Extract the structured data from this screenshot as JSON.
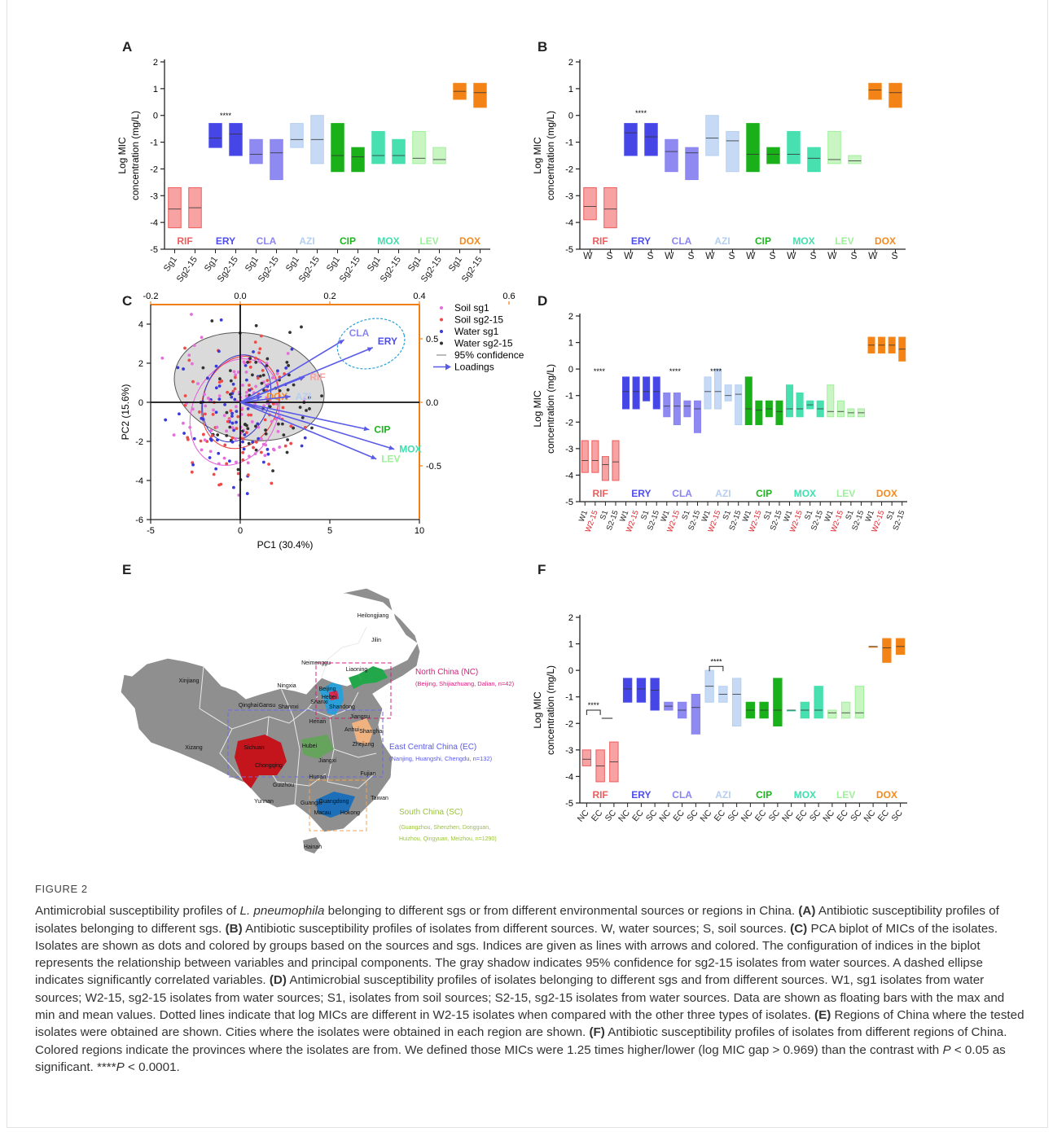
{
  "drug_labels": [
    "RIF",
    "ERY",
    "CLA",
    "AZI",
    "CIP",
    "MOX",
    "LEV",
    "DOX"
  ],
  "drug_colors": [
    "#ef5b5b",
    "#4d4ded",
    "#8a85f0",
    "#b6cff0",
    "#1eb31e",
    "#3fe0ad",
    "#9ef09a",
    "#f58a1f"
  ],
  "drug_fills": [
    "#f7a3a3",
    "#4646e6",
    "#8e8af2",
    "#c6daf6",
    "#19b019",
    "#47e0ae",
    "#c8f5c2",
    "#f38316"
  ],
  "charts": {
    "A": {
      "letter": "A",
      "ylabel1": "Log MIC",
      "ylabel2": "concentration (mg/L)",
      "yticks": [
        "-5",
        "-4",
        "-3",
        "-2",
        "-1",
        "0",
        "1",
        "2"
      ],
      "ymin": -5,
      "ymax": 2,
      "xlabels": [
        "Sg1",
        "Sg2-15",
        "Sg1",
        "Sg2-15",
        "Sg1",
        "Sg2-15",
        "Sg1",
        "Sg2-15",
        "Sg1",
        "Sg2-15",
        "Sg1",
        "Sg2-15",
        "Sg1",
        "Sg2-15",
        "Sg1",
        "Sg2-15"
      ],
      "sig": "****",
      "bars": [
        [
          -4.2,
          -2.7,
          -3.5
        ],
        [
          -4.2,
          -2.7,
          -3.45
        ],
        [
          -1.2,
          -0.3,
          -0.85
        ],
        [
          -1.5,
          -0.3,
          -0.7
        ],
        [
          -1.8,
          -0.9,
          -1.45
        ],
        [
          -2.4,
          -0.9,
          -1.4
        ],
        [
          -1.2,
          -0.3,
          -0.9
        ],
        [
          -1.8,
          0,
          -0.9
        ],
        [
          -2.1,
          -0.3,
          -1.5
        ],
        [
          -2.1,
          -1.2,
          -1.55
        ],
        [
          -1.8,
          -0.6,
          -1.5
        ],
        [
          -1.8,
          -0.9,
          -1.5
        ],
        [
          -1.8,
          -0.6,
          -1.6
        ],
        [
          -1.8,
          -1.2,
          -1.65
        ],
        [
          0.6,
          1.2,
          0.9
        ],
        [
          0.3,
          1.2,
          0.85
        ]
      ]
    },
    "B": {
      "letter": "B",
      "ylabel1": "Log MIC",
      "ylabel2": "concentration (mg/L)",
      "yticks": [
        "-5",
        "-4",
        "-3",
        "-2",
        "-1",
        "0",
        "1",
        "2"
      ],
      "ymin": -5,
      "ymax": 2,
      "xlabels": [
        "W",
        "S",
        "W",
        "S",
        "W",
        "S",
        "W",
        "S",
        "W",
        "S",
        "W",
        "S",
        "W",
        "S",
        "W",
        "S"
      ],
      "sig": "****",
      "bars": [
        [
          -3.9,
          -2.7,
          -3.4
        ],
        [
          -4.2,
          -2.7,
          -3.5
        ],
        [
          -1.5,
          -0.3,
          -0.65
        ],
        [
          -1.5,
          -0.3,
          -0.8
        ],
        [
          -2.1,
          -0.9,
          -1.35
        ],
        [
          -2.4,
          -1.2,
          -1.4
        ],
        [
          -1.5,
          0,
          -0.85
        ],
        [
          -2.1,
          -0.6,
          -0.95
        ],
        [
          -2.1,
          -0.3,
          -1.45
        ],
        [
          -1.8,
          -1.2,
          -1.45
        ],
        [
          -1.8,
          -0.6,
          -1.45
        ],
        [
          -2.1,
          -1.2,
          -1.6
        ],
        [
          -1.8,
          -0.6,
          -1.65
        ],
        [
          -1.8,
          -1.5,
          -1.7
        ],
        [
          0.6,
          1.2,
          0.95
        ],
        [
          0.3,
          1.2,
          0.85
        ]
      ]
    },
    "D": {
      "letter": "D",
      "ylabel1": "Log MIC",
      "ylabel2": "concentration (mg/L)",
      "yticks": [
        "-5",
        "-4",
        "-3",
        "-2",
        "-1",
        "0",
        "1",
        "2"
      ],
      "ymin": -5,
      "ymax": 2,
      "xlabels": [
        "W1",
        "W2-15",
        "S1",
        "S2-15",
        "W1",
        "W2-15",
        "S1",
        "S2-15",
        "W1",
        "W2-15",
        "S1",
        "S2-15",
        "W1",
        "W2-15",
        "S1",
        "S2-15",
        "W1",
        "W2-15",
        "S1",
        "S2-15",
        "W1",
        "W2-15",
        "S1",
        "S2-15",
        "W1",
        "W2-15",
        "S1",
        "S2-15",
        "W1",
        "W2-15",
        "S1",
        "S2-15"
      ],
      "sig": "****",
      "bars": [
        [
          -3.9,
          -2.7,
          -3.45
        ],
        [
          -3.9,
          -2.7,
          -3.45
        ],
        [
          -4.2,
          -3.3,
          -3.6
        ],
        [
          -4.2,
          -2.7,
          -3.5
        ],
        [
          -1.5,
          -0.3,
          -0.85
        ],
        [
          -1.5,
          -0.3,
          -0.85
        ],
        [
          -1.2,
          -0.3,
          -0.85
        ],
        [
          -1.5,
          -0.3,
          -0.85
        ],
        [
          -1.8,
          -0.9,
          -1.4
        ],
        [
          -2.1,
          -0.9,
          -1.4
        ],
        [
          -1.8,
          -1.2,
          -1.4
        ],
        [
          -2.4,
          -1.2,
          -1.5
        ],
        [
          -1.5,
          -0.3,
          -0.85
        ],
        [
          -1.5,
          0,
          -0.85
        ],
        [
          -1.2,
          -0.6,
          -1.0
        ],
        [
          -2.1,
          -0.6,
          -0.95
        ],
        [
          -2.1,
          -0.3,
          -1.5
        ],
        [
          -2.1,
          -1.2,
          -1.55
        ],
        [
          -1.8,
          -1.2,
          -1.5
        ],
        [
          -2.1,
          -1.2,
          -1.6
        ],
        [
          -1.8,
          -0.6,
          -1.5
        ],
        [
          -1.8,
          -0.9,
          -1.5
        ],
        [
          -1.5,
          -1.2,
          -1.35
        ],
        [
          -1.8,
          -1.2,
          -1.5
        ],
        [
          -1.8,
          -0.6,
          -1.6
        ],
        [
          -1.8,
          -1.2,
          -1.6
        ],
        [
          -1.8,
          -1.5,
          -1.65
        ],
        [
          -1.8,
          -1.5,
          -1.65
        ],
        [
          0.6,
          1.2,
          0.9
        ],
        [
          0.6,
          1.2,
          0.9
        ],
        [
          0.6,
          1.2,
          0.9
        ],
        [
          0.3,
          1.2,
          0.75
        ]
      ]
    },
    "F": {
      "letter": "F",
      "ylabel1": "Log MIC",
      "ylabel2": "concentration (mg/L)",
      "yticks": [
        "-5",
        "-4",
        "-3",
        "-2",
        "-1",
        "0",
        "1",
        "2"
      ],
      "ymin": -5,
      "ymax": 2,
      "xlabels": [
        "NC",
        "EC",
        "SC",
        "NC",
        "EC",
        "SC",
        "NC",
        "EC",
        "SC",
        "NC",
        "EC",
        "SC",
        "NC",
        "EC",
        "SC",
        "NC",
        "EC",
        "SC",
        "NC",
        "EC",
        "SC",
        "NC",
        "EC",
        "SC"
      ],
      "sig": "****",
      "bars": [
        [
          -3.6,
          -3.0,
          -3.35
        ],
        [
          -4.2,
          -3.0,
          -3.6
        ],
        [
          -4.2,
          -2.7,
          -3.45
        ],
        [
          -1.2,
          -0.3,
          -0.7
        ],
        [
          -1.2,
          -0.3,
          -0.7
        ],
        [
          -1.5,
          -0.3,
          -0.75
        ],
        [
          -1.5,
          -1.2,
          -1.35
        ],
        [
          -1.8,
          -1.2,
          -1.5
        ],
        [
          -2.4,
          -0.9,
          -1.4
        ],
        [
          -1.2,
          0,
          -0.6
        ],
        [
          -1.2,
          -0.6,
          -0.9
        ],
        [
          -2.1,
          -0.3,
          -0.9
        ],
        [
          -1.8,
          -1.2,
          -1.5
        ],
        [
          -1.8,
          -1.2,
          -1.5
        ],
        [
          -2.1,
          -0.3,
          -1.5
        ],
        [
          -1.5,
          -1.5,
          -1.5
        ],
        [
          -1.8,
          -1.2,
          -1.5
        ],
        [
          -1.8,
          -0.6,
          -1.5
        ],
        [
          -1.8,
          -1.5,
          -1.6
        ],
        [
          -1.8,
          -1.2,
          -1.6
        ],
        [
          -1.8,
          -0.6,
          -1.6
        ],
        [
          0.9,
          0.9,
          0.9
        ],
        [
          0.3,
          1.2,
          0.85
        ],
        [
          0.6,
          1.2,
          0.9
        ]
      ]
    }
  },
  "pca": {
    "letter": "C",
    "xlabel": "PC1 (30.4%)",
    "ylabel": "PC2 (15.6%)",
    "xticks": [
      "-5",
      "0",
      "5",
      "10"
    ],
    "yticks": [
      "-6",
      "-4",
      "-2",
      "0",
      "2",
      "4"
    ],
    "top_ticks": [
      "-0.2",
      "0.0",
      "0.2",
      "0.4",
      "0.6"
    ],
    "right_ticks": [
      "0.5",
      "0.0",
      "-0.5"
    ],
    "legend": [
      "Soil sg1",
      "Soil sg2-15",
      "Water sg1",
      "Water sg2-15",
      "95% confidence",
      "Loadings"
    ],
    "loadings": [
      {
        "name": "CLA",
        "x": 5.8,
        "y": 3.2
      },
      {
        "name": "ERY",
        "x": 7.4,
        "y": 2.8
      },
      {
        "name": "RIF",
        "x": 3.6,
        "y": 1.3
      },
      {
        "name": "DOX",
        "x": 1.2,
        "y": 0.3
      },
      {
        "name": "AZI",
        "x": 2.8,
        "y": 0.3
      },
      {
        "name": "CIP",
        "x": 7.2,
        "y": -1.4
      },
      {
        "name": "MOX",
        "x": 8.6,
        "y": -2.4
      },
      {
        "name": "LEV",
        "x": 7.6,
        "y": -2.9
      }
    ]
  },
  "map": {
    "letter": "E",
    "provinces": [
      "Heilongjiang",
      "Jilin",
      "Liaoning",
      "Neimenggu",
      "Beijing",
      "Hebei",
      "Xinjiang",
      "Ningxia",
      "Shanxi",
      "Shandong",
      "Qinghai",
      "Gansu",
      "Shannxi",
      "Henan",
      "Jiangsu",
      "Anhui",
      "Shanghai",
      "Xizang",
      "Sichuan",
      "Hubei",
      "Zhejiang",
      "Chongqing",
      "Jiangxi",
      "Hunan",
      "Fujian",
      "Guizhou",
      "Yunnan",
      "Taiwan",
      "Guangxi",
      "Guangdong",
      "Macau",
      "Hokong",
      "Hainan"
    ],
    "regions": [
      {
        "title": "North China (NC)",
        "cities": "(Beijing, Shijiazhuang, Dalian, n=42)"
      },
      {
        "title": "East Central China (EC)",
        "cities": "(Nanjing, Huangshi, Chengdu, n=132)"
      },
      {
        "title": "South China (SC)",
        "cities": "(Guangzhou, Shenzhen, Dongguan,",
        "cities2": "Huizhou, Qingyuan, Meizhou, n=1290)"
      }
    ]
  },
  "caption": {
    "figure": "FIGURE 2",
    "intro_a": "Antimicrobial susceptibility profiles of ",
    "species": "L. pneumophila",
    "intro_b": " belonging to different sgs or from different environmental sources or regions in China.",
    "A_label": "(A)",
    "A_text": " Antibiotic susceptibility profiles of isolates belonging to different sgs. ",
    "B_label": "(B)",
    "B_text": " Antibiotic susceptibility profiles of isolates from different sources. W, water sources; S, soil sources. ",
    "C_label": "(C)",
    "C_text": " PCA biplot of MICs of the isolates. Isolates are shown as dots and colored by groups based on the sources and sgs. Indices are given as lines with arrows and colored. The configuration of indices in the biplot represents the relationship between variables and principal components. The gray shadow indicates 95% confidence for sg2-15 isolates from water sources. A dashed ellipse indicates significantly correlated variables. ",
    "D_label": "(D)",
    "D_text": " Antimicrobial susceptibility profiles of isolates belonging to different sgs and from different sources. W1, sg1 isolates from water sources; W2-15, sg2-15 isolates from water sources; S1, isolates from soil sources; S2-15, sg2-15 isolates from water sources. Data are shown as floating bars with the max and min and mean values. Dotted lines indicate that log MICs are different in W2-15 isolates when compared with the other three types of isolates. ",
    "E_label": "(E)",
    "E_text": " Regions of China where the tested isolates were obtained are shown. Cities where the isolates were obtained in each region are shown. ",
    "F_label": "(F)",
    "F_text": " Antibiotic susceptibility profiles of isolates from different regions of China. Colored regions indicate the provinces where the isolates are from. We defined those MICs were 1.25 times higher/lower (log MIC gap > 0.969) than the contrast with ",
    "p1": "P",
    "F_text2": " < 0.05 as significant. ****",
    "p2": "P",
    "F_text3": " < 0.0001."
  }
}
